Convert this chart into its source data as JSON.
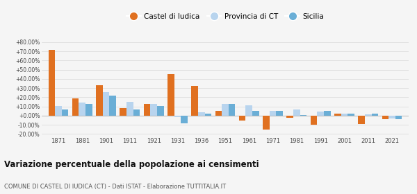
{
  "years": [
    1871,
    1881,
    1901,
    1911,
    1921,
    1931,
    1936,
    1951,
    1961,
    1971,
    1981,
    1991,
    2001,
    2011,
    2021
  ],
  "castel": [
    71.5,
    18.5,
    33.5,
    8.5,
    12.5,
    45.5,
    32.5,
    5.0,
    -5.5,
    -15.5,
    -2.5,
    -10.0,
    2.0,
    -9.0,
    -3.5
  ],
  "provincia": [
    10.5,
    14.0,
    25.5,
    15.0,
    12.5,
    -1.5,
    3.5,
    12.5,
    11.5,
    5.0,
    7.0,
    4.5,
    2.5,
    1.5,
    -3.0
  ],
  "sicilia": [
    7.0,
    13.0,
    21.5,
    6.5,
    10.5,
    -8.5,
    2.5,
    12.5,
    5.0,
    5.0,
    0.5,
    5.0,
    2.0,
    2.0,
    -3.5
  ],
  "color_castel": "#e07020",
  "color_provincia": "#b8d4ee",
  "color_sicilia": "#6aaed6",
  "title": "Variazione percentuale della popolazione ai censimenti",
  "subtitle": "COMUNE DI CASTEL DI IUDICA (CT) - Dati ISTAT - Elaborazione TUTTITALIA.IT",
  "legend_castel": "Castel di Iudica",
  "legend_provincia": "Provincia di CT",
  "legend_sicilia": "Sicilia",
  "ylim": [
    -22,
    88
  ],
  "yticks": [
    -20,
    -10,
    0,
    10,
    20,
    30,
    40,
    50,
    60,
    70,
    80
  ],
  "bg_color": "#f5f5f5",
  "grid_color": "#dddddd"
}
